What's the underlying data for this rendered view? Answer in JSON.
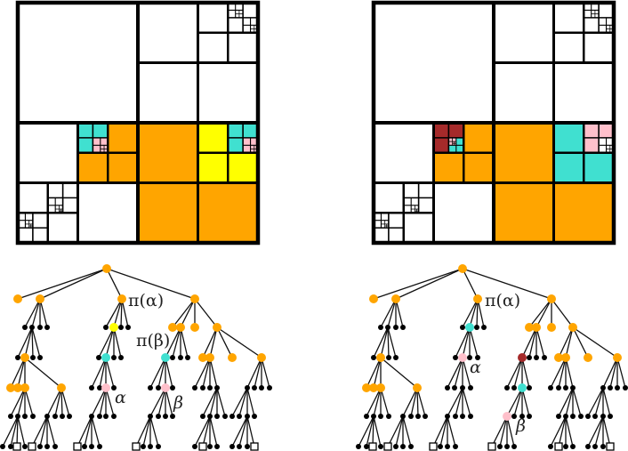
{
  "colors": {
    "orange": "#FFA500",
    "yellow": "#FFFF00",
    "cyan": "#40E0D0",
    "pink": "#FFC0CB",
    "darkred": "#A52A2A",
    "white": "#FFFFFF",
    "black": "#000000"
  },
  "left": {
    "labels": {
      "pi_alpha": "π(α)",
      "pi_beta": "π(β)",
      "alpha": "α",
      "beta": "β"
    }
  },
  "right": {
    "labels": {
      "pi_alpha": "π(α)",
      "alpha": "α",
      "beta": "β"
    }
  }
}
